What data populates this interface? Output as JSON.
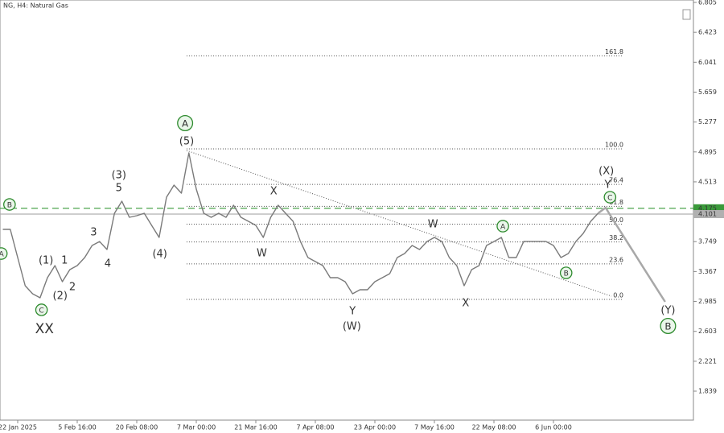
{
  "chart_data": {
    "type": "line",
    "title": "NG, H4: Natural Gas",
    "categories": [
      null,
      null,
      "22 Jan 2025",
      null,
      null,
      null,
      null,
      null,
      null,
      null,
      "5 Feb 16:00",
      null,
      null,
      null,
      null,
      null,
      null,
      null,
      "20 Feb 08:00",
      null,
      null,
      null,
      null,
      null,
      null,
      null,
      "7 Mar 00:00",
      null,
      null,
      null,
      null,
      null,
      null,
      null,
      "21 Mar 16:00",
      null,
      null,
      null,
      null,
      null,
      null,
      null,
      "7 Apr 08:00",
      null,
      null,
      null,
      null,
      null,
      null,
      null,
      "23 Apr 00:00",
      null,
      null,
      null,
      null,
      null,
      null,
      null,
      "7 May 16:00",
      null,
      null,
      null,
      null,
      null,
      null,
      null,
      "22 May 08:00",
      null,
      null,
      null,
      null,
      null,
      null,
      null,
      "6 Jun 00:00",
      null,
      null,
      null,
      null,
      null,
      null,
      null,
      null,
      null,
      null,
      null,
      null,
      null,
      null,
      null
    ],
    "series": [
      {
        "color": "#7a7a7a",
        "values": [
          3.906,
          3.906,
          3.546,
          3.186,
          3.083,
          3.032,
          3.289,
          3.443,
          3.237,
          3.392,
          3.443,
          3.546,
          3.7,
          3.751,
          3.649,
          4.111,
          4.266,
          4.06,
          4.081,
          4.111,
          3.957,
          3.803,
          4.317,
          4.471,
          4.368,
          4.882,
          4.42,
          4.111,
          4.06,
          4.111,
          4.06,
          4.214,
          4.06,
          4.009,
          3.957,
          3.803,
          4.06,
          4.214,
          4.111,
          4.009,
          3.751,
          3.546,
          3.494,
          3.443,
          3.289,
          3.289,
          3.237,
          3.083,
          3.135,
          3.135,
          3.237,
          3.289,
          3.34,
          3.546,
          3.597,
          3.7,
          3.649,
          3.751,
          3.803,
          3.751,
          3.546,
          3.443,
          3.186,
          3.392,
          3.443,
          3.7,
          3.751,
          3.803,
          3.546,
          3.546,
          3.751,
          3.751,
          3.751,
          3.751,
          3.7,
          3.546,
          3.597,
          3.751,
          3.854,
          4.009,
          4.111,
          null,
          null,
          null,
          null,
          null,
          null,
          null,
          null,
          null
        ]
      },
      {
        "color": "#a8a8a8",
        "values": [
          null,
          null,
          null,
          null,
          null,
          null,
          null,
          null,
          null,
          null,
          null,
          null,
          null,
          null,
          null,
          null,
          null,
          null,
          null,
          null,
          null,
          null,
          null,
          null,
          null,
          null,
          null,
          null,
          null,
          null,
          null,
          null,
          null,
          null,
          null,
          null,
          null,
          null,
          null,
          null,
          null,
          null,
          null,
          null,
          null,
          null,
          null,
          null,
          null,
          null,
          null,
          null,
          null,
          null,
          null,
          null,
          null,
          null,
          null,
          null,
          null,
          null,
          null,
          null,
          null,
          null,
          null,
          null,
          null,
          null,
          null,
          null,
          null,
          null,
          null,
          null,
          null,
          null,
          null,
          null,
          4.111,
          4.183,
          4.03,
          3.88,
          3.73,
          3.58,
          3.43,
          3.28,
          3.13,
          2.98
        ]
      }
    ],
    "ylim": [
      1.469,
      6.836
    ],
    "yticks": [
      6.805,
      6.423,
      6.041,
      5.659,
      5.277,
      4.895,
      4.513,
      4.131,
      3.749,
      3.367,
      2.985,
      2.603,
      2.221,
      1.839
    ],
    "price_lines": [
      {
        "value": 4.175,
        "color": "#3a9a3a",
        "style": "dashed"
      },
      {
        "value": 4.101,
        "color": "#b0b0b0",
        "style": "solid"
      }
    ],
    "fib": {
      "x": [
        24.7,
        83.4
      ],
      "start": 3.011,
      "end": 4.934,
      "levels": [
        {
          "value": 0,
          "label": "0.0"
        },
        23.6,
        38.2,
        {
          "value": 50,
          "label": "50.0"
        },
        61.8,
        76.4,
        {
          "value": 100,
          "label": "100.0"
        },
        161.8
      ]
    },
    "trendline": {
      "x": [
        24.7,
        81.8
      ],
      "values": [
        4.913,
        3.052
      ]
    },
    "annotations": [
      {
        "text": "A",
        "x": -0.2,
        "y": 3.597,
        "color": "#2e8b2e",
        "circled": true
      },
      {
        "text": "B",
        "x": 0.9,
        "y": 4.224,
        "color": "#2e8b2e",
        "circled": true
      },
      {
        "text": "C",
        "x": 5.2,
        "y": 2.878,
        "color": "#2e8b2e",
        "circled": true
      },
      {
        "text": "XX",
        "x": 5.6,
        "y": 2.641,
        "color": "#8b1a1a",
        "big": true
      },
      {
        "text": "(1)",
        "x": 5.8,
        "y": 3.515,
        "color": "#1f1f80"
      },
      {
        "text": "(2)",
        "x": 7.7,
        "y": 3.063,
        "color": "#1f1f80"
      },
      {
        "text": "1",
        "x": 8.3,
        "y": 3.515,
        "color": "#8b1a1a"
      },
      {
        "text": "2",
        "x": 9.35,
        "y": 3.176,
        "color": "#8b1a1a"
      },
      {
        "text": "3",
        "x": 12.2,
        "y": 3.875,
        "color": "#8b1a1a"
      },
      {
        "text": "4",
        "x": 14.1,
        "y": 3.474,
        "color": "#8b1a1a"
      },
      {
        "text": "(3)",
        "x": 15.6,
        "y": 4.605,
        "color": "#1f1f80"
      },
      {
        "text": "5",
        "x": 15.6,
        "y": 4.44,
        "color": "#8b1a1a"
      },
      {
        "text": "(4)",
        "x": 21.1,
        "y": 3.597,
        "color": "#1f1f80"
      },
      {
        "text": "A",
        "x": 24.5,
        "y": 5.263,
        "color": "#2e8b2e",
        "circled": true,
        "big": true
      },
      {
        "text": "(5)",
        "x": 24.7,
        "y": 5.037,
        "color": "#1f1f80"
      },
      {
        "text": "X",
        "x": 36.4,
        "y": 4.399,
        "color": "#8b1a1a"
      },
      {
        "text": "W",
        "x": 34.8,
        "y": 3.608,
        "color": "#8b1a1a"
      },
      {
        "text": "Y",
        "x": 47.0,
        "y": 2.867,
        "color": "#8b1a1a"
      },
      {
        "text": "(W)",
        "x": 46.9,
        "y": 2.672,
        "color": "#1f1f80"
      },
      {
        "text": "W",
        "x": 57.8,
        "y": 3.978,
        "color": "#8b1a1a"
      },
      {
        "text": "X",
        "x": 62.2,
        "y": 2.97,
        "color": "#8b1a1a"
      },
      {
        "text": "A",
        "x": 67.2,
        "y": 3.947,
        "color": "#2e8b2e",
        "circled": true
      },
      {
        "text": "B",
        "x": 75.7,
        "y": 3.35,
        "color": "#2e8b2e",
        "circled": true
      },
      {
        "text": "(X)",
        "x": 81.1,
        "y": 4.656,
        "color": "#1f1f80"
      },
      {
        "text": "Y",
        "x": 81.3,
        "y": 4.481,
        "color": "#8b1a1a"
      },
      {
        "text": "C",
        "x": 81.6,
        "y": 4.317,
        "color": "#2e8b2e",
        "circled": true
      },
      {
        "text": "(Y)",
        "x": 89.4,
        "y": 2.878,
        "color": "#1f1f80"
      },
      {
        "text": "B",
        "x": 89.4,
        "y": 2.672,
        "color": "#2e8b2e",
        "circled": true,
        "big": true
      }
    ]
  }
}
